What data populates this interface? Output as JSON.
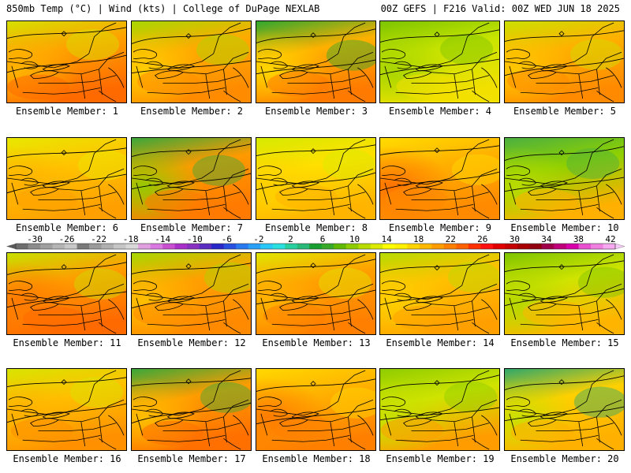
{
  "header": {
    "left": "850mb Temp (°C) | Wind (kts) | College of DuPage NEXLAB",
    "right": "00Z GEFS | F216 Valid: 00Z WED JUN 18 2025"
  },
  "panel_label_prefix": "Ensemble Member: ",
  "members": [
    {
      "label": "Ensemble Member: 1",
      "base": "#ffa000",
      "north": "#d6e000",
      "south": "#ff6a00",
      "nw": "#ffb400"
    },
    {
      "label": "Ensemble Member: 2",
      "base": "#ffaa00",
      "north": "#a8d800",
      "south": "#ff8c00",
      "nw": "#ffd000"
    },
    {
      "label": "Ensemble Member: 3",
      "base": "#ffb000",
      "north": "#2fa82f",
      "south": "#ff7a00",
      "nw": "#ffd800"
    },
    {
      "label": "Ensemble Member: 4",
      "base": "#c8e400",
      "north": "#7cc400",
      "south": "#f2e000",
      "nw": "#a6d400"
    },
    {
      "label": "Ensemble Member: 5",
      "base": "#ffb000",
      "north": "#cce000",
      "south": "#ff8a00",
      "nw": "#ffc800"
    },
    {
      "label": "Ensemble Member: 6",
      "base": "#ffc400",
      "north": "#e8e800",
      "south": "#ffa000",
      "nw": "#ffb000"
    },
    {
      "label": "Ensemble Member: 7",
      "base": "#ff9a00",
      "north": "#3aa83a",
      "south": "#ff7a00",
      "nw": "#8fcc00"
    },
    {
      "label": "Ensemble Member: 8",
      "base": "#ffe000",
      "north": "#d6ea00",
      "south": "#ffb400",
      "nw": "#ffd000"
    },
    {
      "label": "Ensemble Member: 9",
      "base": "#ffb000",
      "north": "#ffdc00",
      "south": "#ff8a00",
      "nw": "#ff7000"
    },
    {
      "label": "Ensemble Member: 10",
      "base": "#8fd000",
      "north": "#4cb040",
      "south": "#ffb000",
      "nw": "#b8dc00"
    },
    {
      "label": "Ensemble Member: 11",
      "base": "#ff9c00",
      "north": "#c8e000",
      "south": "#ff6a00",
      "nw": "#ff7a00"
    },
    {
      "label": "Ensemble Member: 12",
      "base": "#ffa000",
      "north": "#a8d800",
      "south": "#ff8a00",
      "nw": "#ffc000"
    },
    {
      "label": "Ensemble Member: 13",
      "base": "#ffa000",
      "north": "#e0e600",
      "south": "#ff8000",
      "nw": "#ffb400"
    },
    {
      "label": "Ensemble Member: 14",
      "base": "#ffc000",
      "north": "#b8dc00",
      "south": "#ffa000",
      "nw": "#ffd000"
    },
    {
      "label": "Ensemble Member: 15",
      "base": "#d0e400",
      "north": "#7ec400",
      "south": "#ffb400",
      "nw": "#b4d800"
    },
    {
      "label": "Ensemble Member: 16",
      "base": "#ffc000",
      "north": "#d8e400",
      "south": "#ff9000",
      "nw": "#ffb000"
    },
    {
      "label": "Ensemble Member: 17",
      "base": "#ff9c00",
      "north": "#3aa83a",
      "south": "#ff7000",
      "nw": "#ffc000"
    },
    {
      "label": "Ensemble Member: 18",
      "base": "#ffb000",
      "north": "#ffd800",
      "south": "#ff8000",
      "nw": "#ff7a00"
    },
    {
      "label": "Ensemble Member: 19",
      "base": "#d0e400",
      "north": "#8fcc00",
      "south": "#ff9c00",
      "nw": "#c8e000"
    },
    {
      "label": "Ensemble Member: 20",
      "base": "#ffd000",
      "north": "#2fa86a",
      "south": "#ffb000",
      "nw": "#c8e000"
    }
  ],
  "scale": {
    "labels": [
      "-30",
      "-26",
      "-22",
      "-18",
      "-14",
      "-10",
      "-6",
      "-2",
      "2",
      "6",
      "10",
      "14",
      "18",
      "22",
      "26",
      "30",
      "34",
      "38",
      "42"
    ],
    "colors": [
      "#6e6e6e",
      "#8c8c8c",
      "#a0a0a0",
      "#b4b4b4",
      "#c8c8c8",
      "#7a7a7a",
      "#9a9a9a",
      "#b0b0b0",
      "#c6c6c6",
      "#d8d8d8",
      "#e0a0e0",
      "#d878e0",
      "#c850d0",
      "#a830c8",
      "#8830c0",
      "#5a2cc0",
      "#2828c8",
      "#2850e0",
      "#2878f0",
      "#28a0f8",
      "#28c8f8",
      "#28e0e0",
      "#28d0a0",
      "#28b878",
      "#189e2e",
      "#38a828",
      "#60b800",
      "#8ccc00",
      "#b8dc00",
      "#dcea00",
      "#ffff00",
      "#fff000",
      "#ffd400",
      "#ffb800",
      "#ff9c00",
      "#ff8000",
      "#ff6000",
      "#ff3000",
      "#ff1010",
      "#e00000",
      "#c40000",
      "#a80000",
      "#900010",
      "#a0004a",
      "#c0007a",
      "#d800a8",
      "#e850d0",
      "#f080e0",
      "#f8a8f0"
    ]
  }
}
